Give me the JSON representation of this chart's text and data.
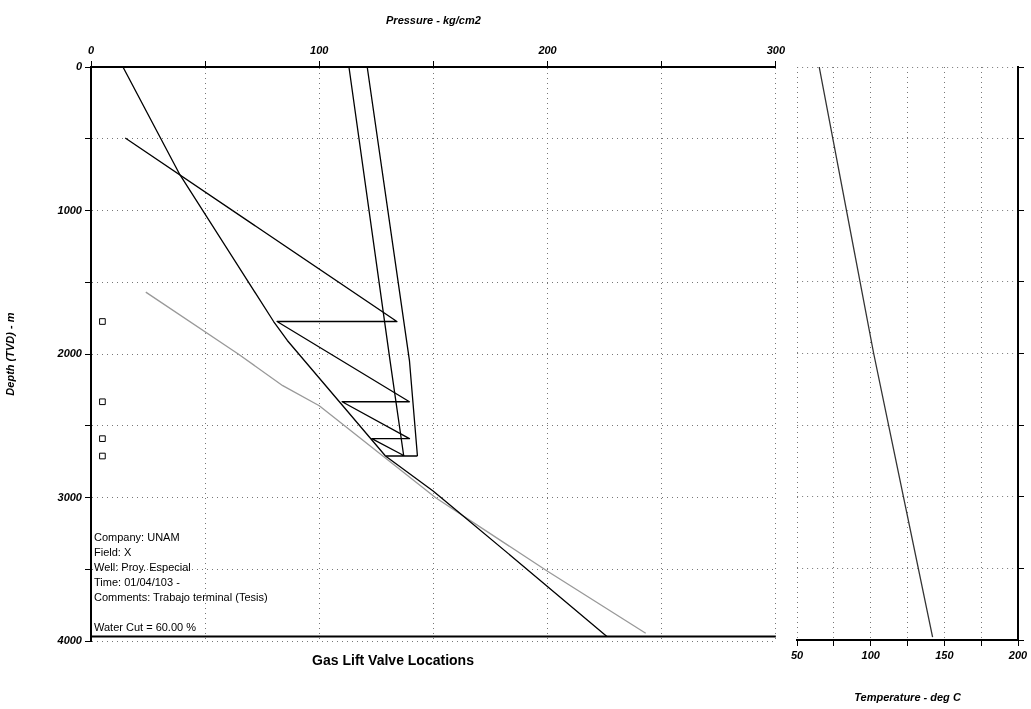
{
  "chart_data": [
    {
      "type": "line",
      "title": "Gas Lift Valve Locations",
      "xlabel": "Pressure - kg/cm2",
      "ylabel": "Depth (TVD) - m",
      "xlim": [
        0,
        300
      ],
      "xticks": [
        0,
        {
          "value": 50,
          "label": null
        },
        100,
        {
          "value": 150,
          "label": null
        },
        200,
        {
          "value": 250,
          "label": null
        },
        300
      ],
      "ylim": [
        4000,
        0
      ],
      "yticks": [
        0,
        {
          "value": 500,
          "label": null
        },
        1000,
        {
          "value": 1500,
          "label": null
        },
        2000,
        {
          "value": 2500,
          "label": null
        },
        3000,
        {
          "value": 3500,
          "label": null
        },
        4000
      ],
      "grid": true,
      "annotations": [
        "Company: UNAM",
        "Field: X",
        "Well: Proy. Especial",
        "Time: 01/04/103 -",
        "Comments: Trabajo terminal (Tesis)",
        "Water Cut = 60.00 %"
      ],
      "ref_lines": [
        {
          "axis": "y",
          "value": 3968
        }
      ],
      "series": [
        {
          "color": "#000000",
          "x": [
            14,
            39,
            80,
            86,
            129,
            150,
            186,
            226
          ],
          "values": [
            0,
            752,
            1773,
            1905,
            2710,
            2955,
            3432,
            3968
          ]
        },
        {
          "color": "#999999",
          "x": [
            24,
            64.5,
            84,
            100,
            151,
            200,
            243
          ],
          "values": [
            1568,
            1999,
            2220,
            2360,
            3001,
            3513,
            3945
          ]
        },
        {
          "color": "#000000",
          "x": [
            113,
            131,
            137
          ],
          "values": [
            0,
            2045,
            2710
          ]
        },
        {
          "color": "#000000",
          "x": [
            121,
            139.5,
            143
          ],
          "values": [
            0,
            2045,
            2710
          ]
        },
        {
          "color": "#000000",
          "x": [
            15,
            134,
            81.5,
            139.5,
            110,
            139.5,
            123,
            137.4,
            129.4,
            143
          ],
          "values": [
            495,
            1773,
            1773,
            2332,
            2332,
            2589,
            2589,
            2710,
            2710,
            2710
          ]
        },
        {
          "type": "scatter",
          "marker": "square",
          "color": "#000000",
          "x": [
            5,
            5,
            5,
            5
          ],
          "values": [
            1773,
            2332,
            2589,
            2710
          ]
        }
      ]
    },
    {
      "type": "line",
      "xlabel": "Temperature - deg C",
      "xlim": [
        50,
        200
      ],
      "xticks": [
        50,
        {
          "value": 75,
          "label": null
        },
        100,
        {
          "value": 125,
          "label": null
        },
        150,
        {
          "value": 175,
          "label": null
        },
        200
      ],
      "ylim": [
        4000,
        0
      ],
      "yticks": [
        0,
        {
          "value": 500,
          "label": null
        },
        1000,
        {
          "value": 1500,
          "label": null
        },
        2000,
        {
          "value": 2500,
          "label": null
        },
        3000,
        {
          "value": 3500,
          "label": null
        },
        4000
      ],
      "tick_labels": "x",
      "grid": true,
      "series": [
        {
          "color": "#333333",
          "x": [
            65,
            102,
            142
          ],
          "values": [
            0,
            2000,
            3980
          ]
        }
      ]
    }
  ]
}
